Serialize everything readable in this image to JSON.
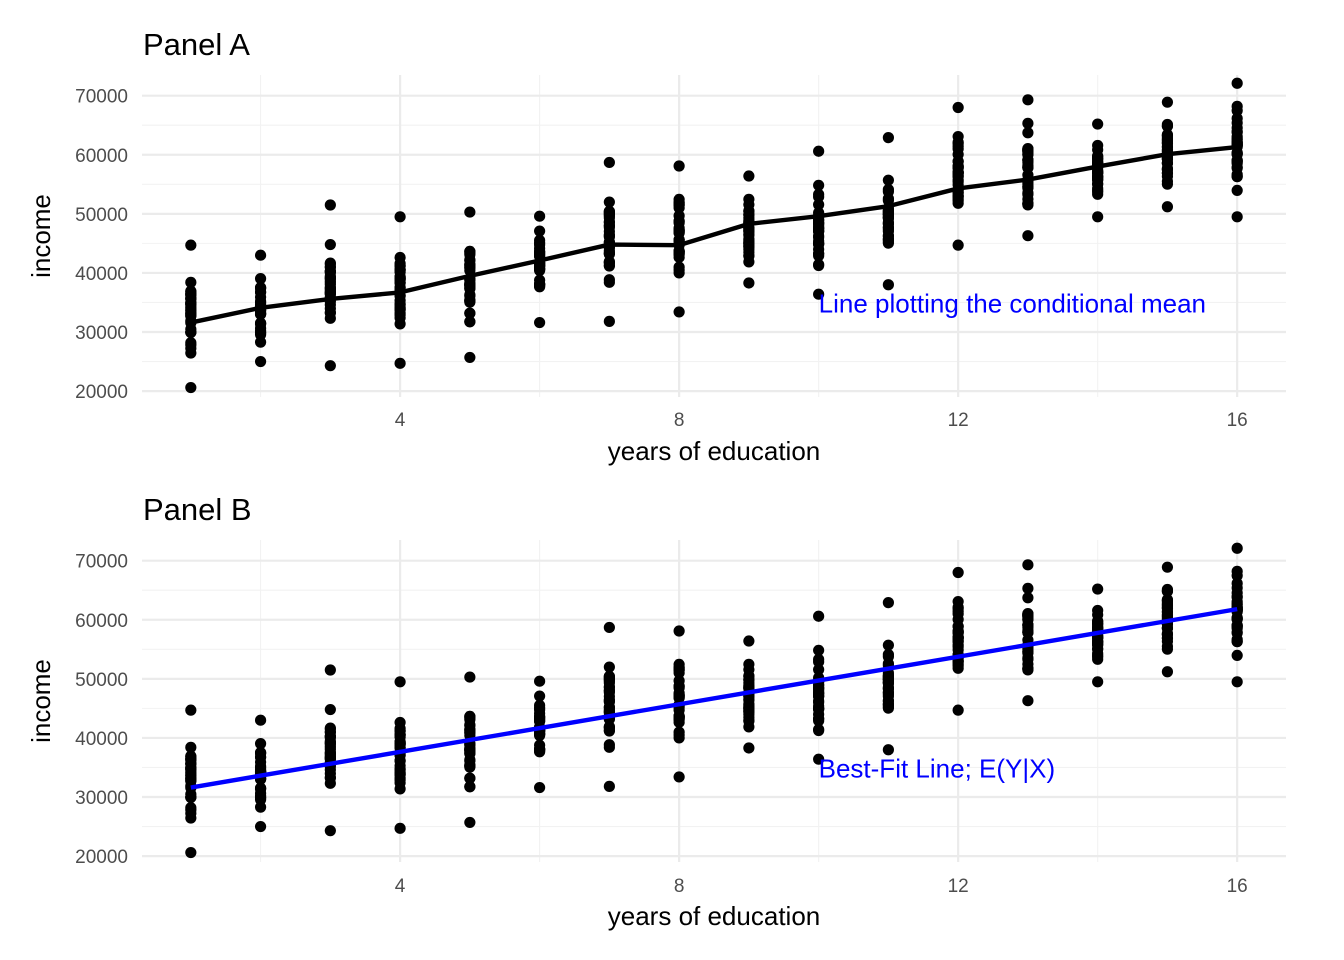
{
  "chart_data": [
    {
      "type": "scatter",
      "title": "Panel A",
      "xlabel": "years of education",
      "ylabel": "income",
      "xlim": [
        0.3,
        16.7
      ],
      "ylim": [
        19000,
        73500
      ],
      "xticks": [
        4,
        8,
        12,
        16
      ],
      "yticks": [
        20000,
        30000,
        40000,
        50000,
        60000,
        70000
      ],
      "grid": true,
      "legend": "none",
      "annotation": {
        "text": "Line plotting the conditional mean",
        "x": 10,
        "y": 34800,
        "color": "#0000ff"
      },
      "line": {
        "name": "",
        "color": "#000000",
        "x": [
          1,
          2,
          3,
          4,
          5,
          6,
          7,
          8,
          9,
          10,
          11,
          12,
          13,
          14,
          15,
          16
        ],
        "y": [
          31600,
          34100,
          35600,
          36700,
          39500,
          42100,
          44800,
          44700,
          48300,
          49600,
          51300,
          54300,
          55800,
          58000,
          60100,
          61300
        ]
      },
      "points": {
        "x": [
          1,
          2,
          3,
          4,
          5,
          6,
          7,
          8,
          9,
          10,
          11,
          12,
          13,
          14,
          15,
          16
        ],
        "min": [
          20600,
          25000,
          24300,
          24700,
          25700,
          31600,
          31800,
          33400,
          38300,
          36400,
          38000,
          44700,
          46300,
          49500,
          51200,
          49500
        ],
        "max": [
          44700,
          43000,
          51500,
          49500,
          50300,
          49600,
          58700,
          58100,
          56400,
          60600,
          62900,
          68000,
          69300,
          65200,
          68900,
          72100
        ]
      }
    },
    {
      "type": "scatter",
      "title": "Panel B",
      "xlabel": "years of education",
      "ylabel": "income",
      "xlim": [
        0.3,
        16.7
      ],
      "ylim": [
        19000,
        73500
      ],
      "xticks": [
        4,
        8,
        12,
        16
      ],
      "yticks": [
        20000,
        30000,
        40000,
        50000,
        60000,
        70000
      ],
      "grid": true,
      "legend": "none",
      "annotation": {
        "text": "Best-Fit Line; E(Y|X)",
        "x": 10,
        "y": 34800,
        "color": "#0000ff"
      },
      "line": {
        "name": "",
        "color": "#0000ff",
        "x": [
          1,
          16
        ],
        "y": [
          31600,
          61800
        ]
      },
      "points": {
        "x": [
          1,
          2,
          3,
          4,
          5,
          6,
          7,
          8,
          9,
          10,
          11,
          12,
          13,
          14,
          15,
          16
        ],
        "min": [
          20600,
          25000,
          24300,
          24700,
          25700,
          31600,
          31800,
          33400,
          38300,
          36400,
          38000,
          44700,
          46300,
          49500,
          51200,
          49500
        ],
        "max": [
          44700,
          43000,
          51500,
          49500,
          50300,
          49600,
          58700,
          58100,
          56400,
          60600,
          62900,
          68000,
          69300,
          65200,
          68900,
          72100
        ]
      }
    }
  ]
}
